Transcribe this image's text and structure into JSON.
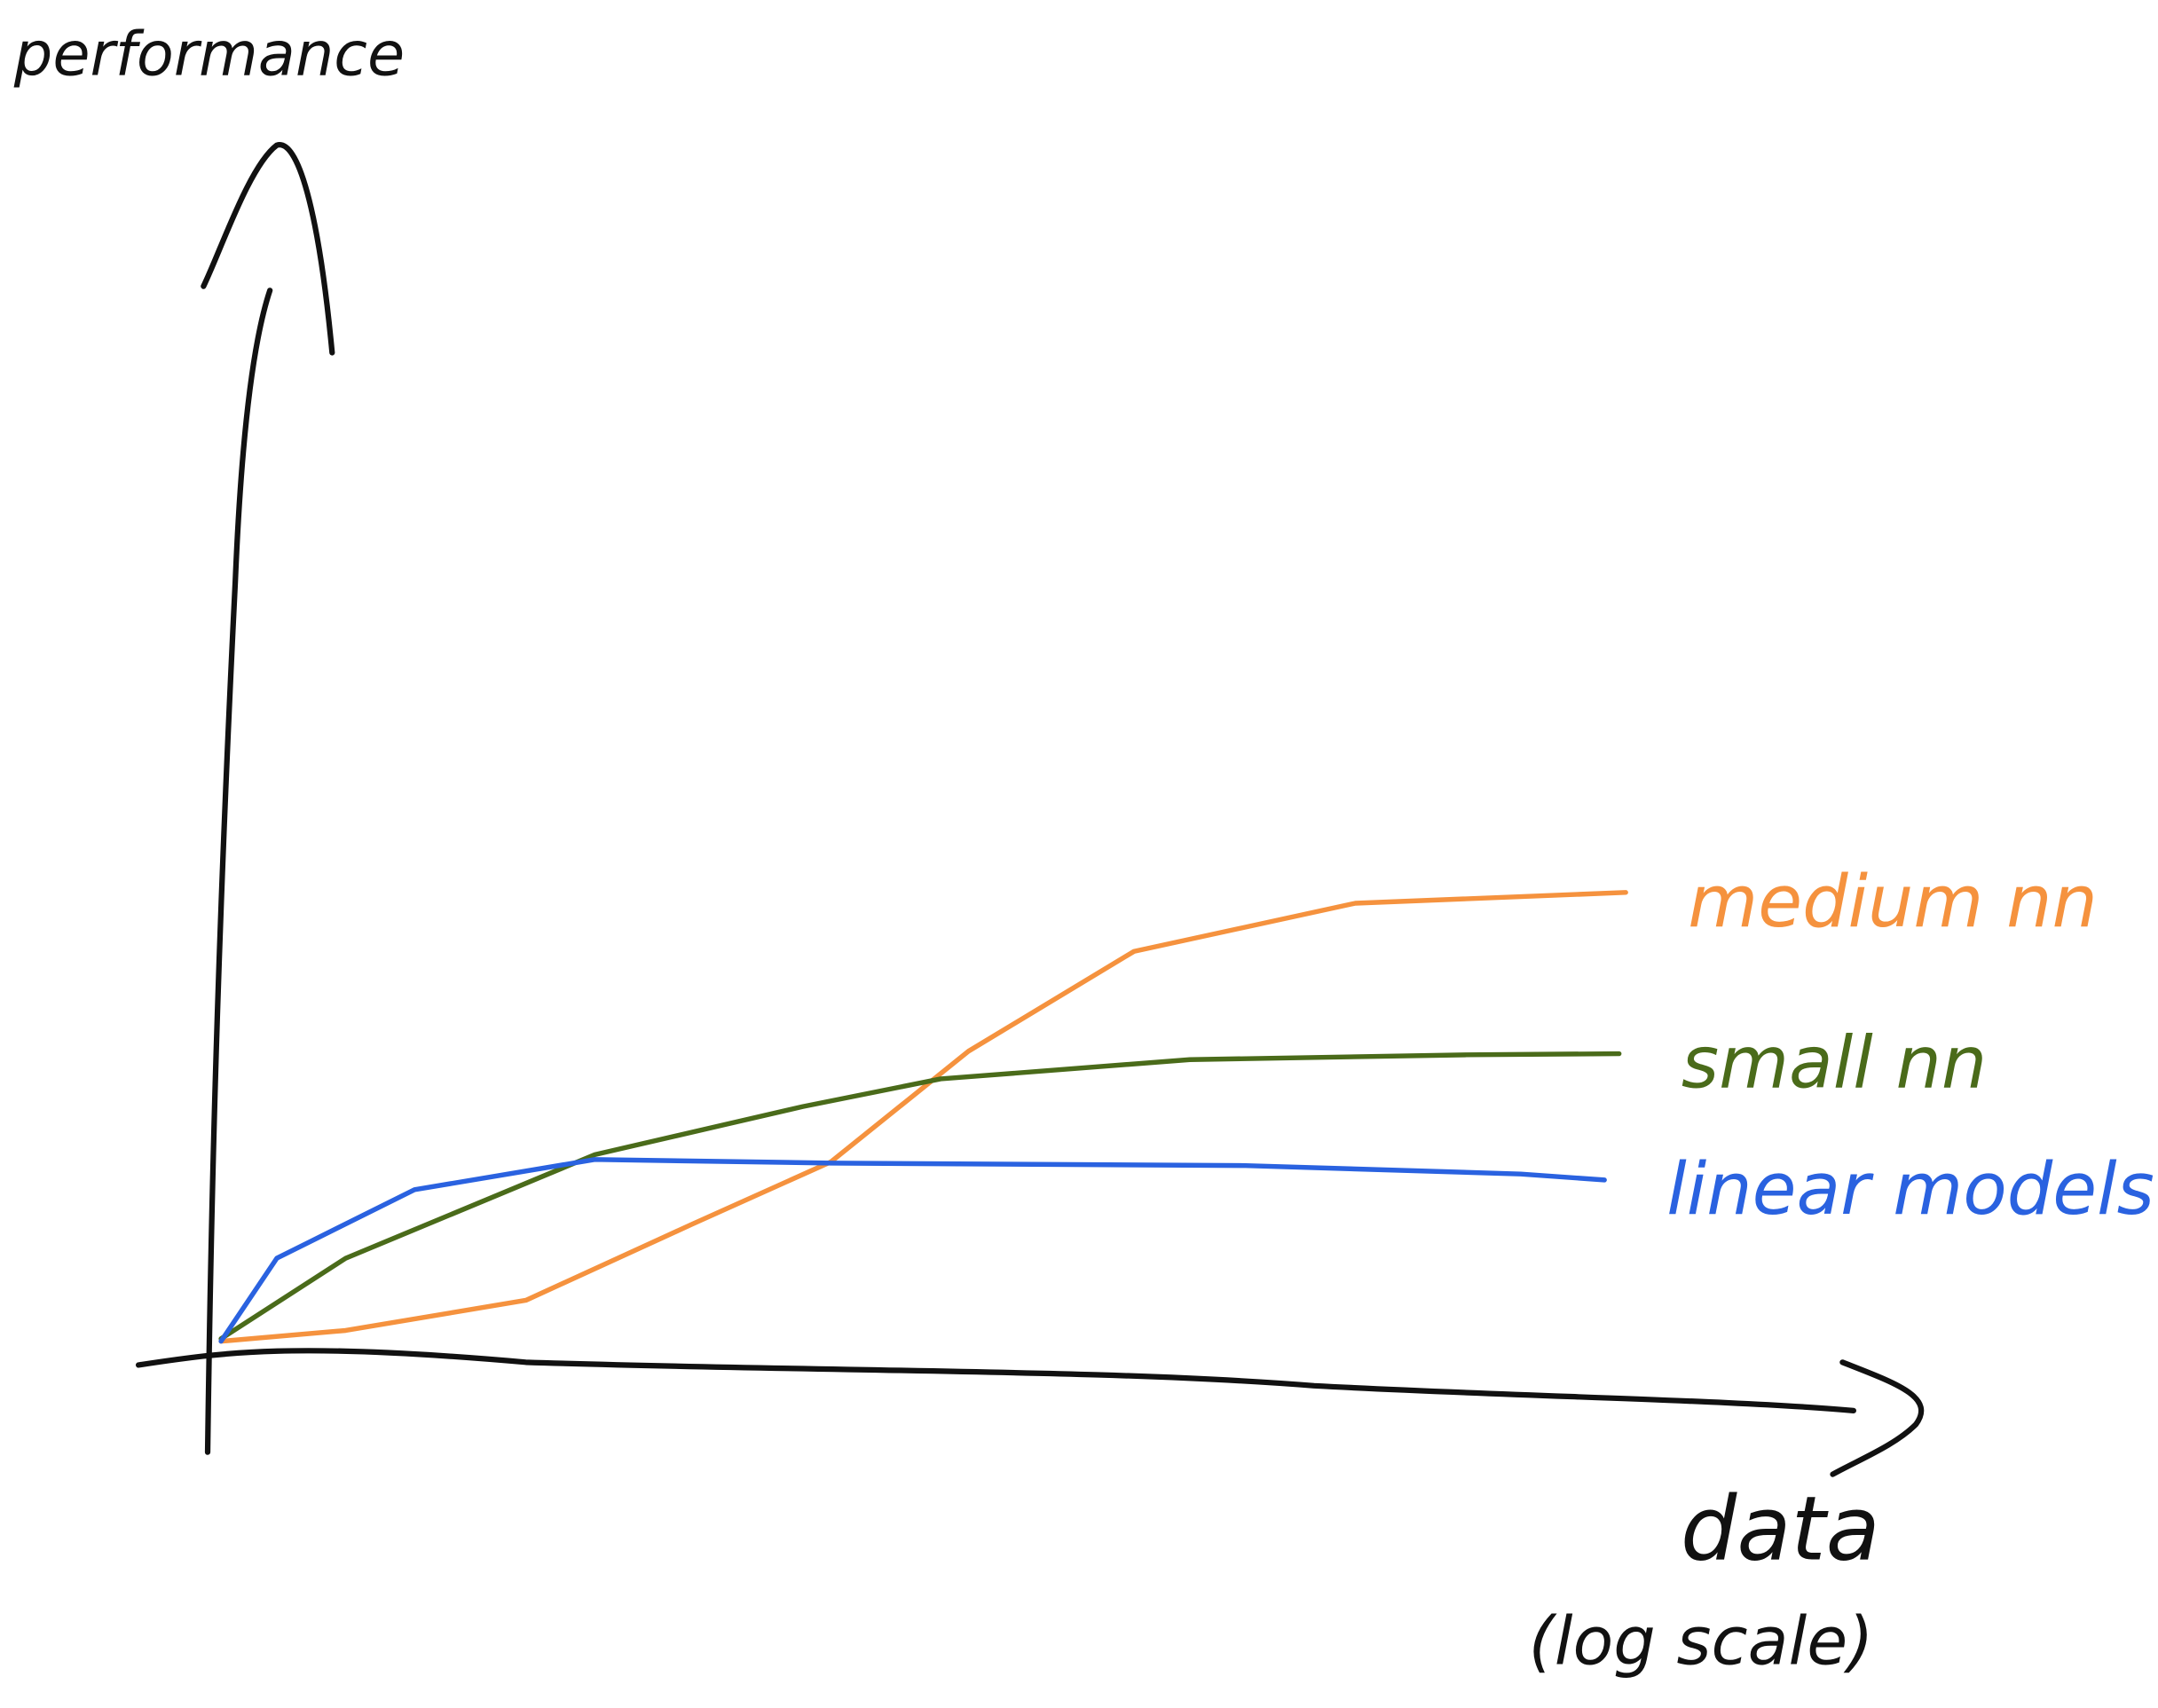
{
  "chart_data": {
    "type": "line",
    "ylabel": "performance",
    "xlabel": "data",
    "xlabel_note": "(log scale)",
    "xlim": [
      0,
      100
    ],
    "ylim": [
      0,
      100
    ],
    "series": [
      {
        "name": "medium nn",
        "color": "#f5923e",
        "x": [
          0.4,
          8.0,
          19.0,
          29.1,
          37.6,
          46.0,
          56.1,
          69.6,
          86.1
        ],
        "values": [
          0.6,
          1.5,
          4.0,
          10.3,
          15.5,
          24.7,
          33.0,
          37.0,
          37.9
        ]
      },
      {
        "name": "small nn",
        "color": "#4a6b1a",
        "x": [
          0.4,
          8.0,
          23.2,
          35.9,
          44.3,
          59.5,
          76.4,
          85.7
        ],
        "values": [
          0.8,
          7.5,
          16.1,
          20.1,
          22.4,
          24.0,
          24.4,
          24.5
        ]
      },
      {
        "name": "linear models",
        "color": "#2a62e0",
        "x": [
          0.4,
          3.8,
          12.2,
          23.2,
          37.6,
          62.9,
          79.7,
          84.8
        ],
        "values": [
          0.6,
          7.5,
          13.2,
          15.7,
          15.4,
          15.2,
          14.5,
          14.0
        ]
      }
    ]
  }
}
